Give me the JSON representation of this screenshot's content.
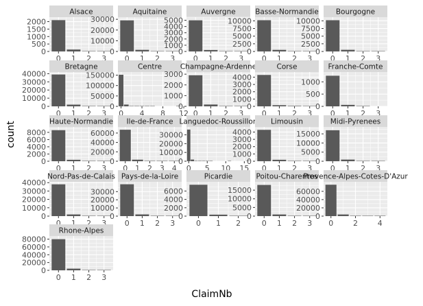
{
  "chart_data": {
    "type": "bar",
    "facet": "wrap",
    "xlabel": "ClaimNb",
    "ylabel": "count",
    "grid": true,
    "colors": {
      "bar": "#595959",
      "panel": "#ebebeb",
      "strip": "#d9d9d9",
      "grid": "#ffffff"
    },
    "panels": [
      {
        "label": "Alsace",
        "x": [
          0,
          1,
          2,
          3
        ],
        "values": [
          2100,
          130,
          8,
          1
        ],
        "ylim": [
          0,
          2300
        ],
        "yticks": [
          "0",
          "500",
          "1000",
          "1500",
          "2000"
        ],
        "xticks": [
          "0",
          "1",
          "2",
          "3"
        ],
        "xlim": [
          -0.6,
          3.6
        ]
      },
      {
        "label": "Aquitaine",
        "x": [
          0,
          1,
          2,
          3
        ],
        "values": [
          29000,
          1500,
          60,
          5
        ],
        "ylim": [
          0,
          32000
        ],
        "yticks": [
          "0",
          "10000",
          "20000",
          "30000"
        ],
        "xticks": [
          "0",
          "1",
          "2",
          "3"
        ],
        "xlim": [
          -0.6,
          3.6
        ]
      },
      {
        "label": "Auvergne",
        "x": [
          0,
          1,
          2,
          3
        ],
        "values": [
          5000,
          230,
          10,
          1
        ],
        "ylim": [
          0,
          5500
        ],
        "yticks": [
          "0",
          "1000",
          "2000",
          "3000",
          "4000",
          "5000"
        ],
        "xticks": [
          "0",
          "1",
          "2",
          "3"
        ],
        "xlim": [
          -0.6,
          3.6
        ]
      },
      {
        "label": "Basse-Normandie",
        "x": [
          0,
          1,
          2,
          3
        ],
        "values": [
          10200,
          520,
          20,
          2
        ],
        "ylim": [
          0,
          11200
        ],
        "yticks": [
          "0",
          "2500",
          "5000",
          "7500",
          "10000"
        ],
        "xticks": [
          "0",
          "1",
          "2",
          "3"
        ],
        "xlim": [
          -0.6,
          3.6
        ]
      },
      {
        "label": "Bourgogne",
        "x": [
          0,
          1,
          2,
          3
        ],
        "values": [
          10200,
          540,
          20,
          2
        ],
        "ylim": [
          0,
          11200
        ],
        "yticks": [
          "0",
          "2500",
          "5000",
          "7500",
          "10000"
        ],
        "xticks": [
          "0",
          "1",
          "2",
          "3"
        ],
        "xlim": [
          -0.6,
          3.6
        ]
      },
      {
        "label": "Bretagne",
        "x": [
          0,
          1,
          2,
          3
        ],
        "values": [
          39000,
          2100,
          80,
          5
        ],
        "ylim": [
          0,
          42000
        ],
        "yticks": [
          "0",
          "10000",
          "20000",
          "30000",
          "40000"
        ],
        "xticks": [
          "0",
          "1",
          "2",
          "3"
        ],
        "xlim": [
          -0.6,
          3.6
        ]
      },
      {
        "label": "Centre",
        "x": [
          0,
          1,
          2,
          3,
          4,
          5,
          6,
          7,
          8,
          9,
          10,
          11
        ],
        "values": [
          152000,
          8500,
          300,
          20,
          3,
          1,
          1,
          0,
          0,
          0,
          0,
          1
        ],
        "ylim": [
          0,
          165000
        ],
        "yticks": [
          "0",
          "50000",
          "100000",
          "150000"
        ],
        "xticks": [
          "0",
          "4",
          "8",
          "12"
        ],
        "xlim": [
          -0.6,
          11.6
        ]
      },
      {
        "label": "Champagne-Ardenne",
        "x": [
          0,
          1,
          2,
          3
        ],
        "values": [
          2900,
          170,
          8,
          1
        ],
        "ylim": [
          0,
          3200
        ],
        "yticks": [
          "0",
          "1000",
          "2000",
          "3000"
        ],
        "xticks": [
          "0",
          "1",
          "2",
          "3"
        ],
        "xlim": [
          -0.6,
          3.6
        ]
      },
      {
        "label": "Corse",
        "x": [
          0,
          1,
          2,
          3
        ],
        "values": [
          4300,
          160,
          60,
          10
        ],
        "ylim": [
          0,
          4700
        ],
        "yticks": [
          "0",
          "1000",
          "2000",
          "3000",
          "4000"
        ],
        "xticks": [
          "0",
          "1",
          "2",
          "3"
        ],
        "xlim": [
          -0.6,
          3.6
        ]
      },
      {
        "label": "Franche-Comte",
        "x": [
          0,
          1,
          2,
          3
        ],
        "values": [
          1250,
          60,
          3,
          0
        ],
        "ylim": [
          0,
          1400
        ],
        "yticks": [
          "0",
          "500",
          "1000"
        ],
        "xticks": [
          "0",
          "1",
          "2",
          "3"
        ],
        "xlim": [
          -0.6,
          3.6
        ]
      },
      {
        "label": "Haute-Normandie",
        "x": [
          0,
          1,
          2,
          3
        ],
        "values": [
          8600,
          400,
          15,
          1
        ],
        "ylim": [
          0,
          9500
        ],
        "yticks": [
          "0",
          "2000",
          "4000",
          "6000",
          "8000"
        ],
        "xticks": [
          "0",
          "1",
          "2",
          "3"
        ],
        "xlim": [
          -0.6,
          3.6
        ]
      },
      {
        "label": "Ile-de-France",
        "x": [
          0,
          1,
          2,
          3,
          4
        ],
        "values": [
          67000,
          3300,
          130,
          10,
          2
        ],
        "ylim": [
          0,
          73000
        ],
        "yticks": [
          "0",
          "20000",
          "40000",
          "60000"
        ],
        "xticks": [
          "0",
          "1",
          "2",
          "3",
          "4"
        ],
        "xlim": [
          -0.6,
          4.6
        ]
      },
      {
        "label": "Languedoc-Roussillon",
        "x": [
          0,
          1,
          2,
          3,
          4,
          5,
          6,
          7,
          8,
          9,
          10,
          11,
          12,
          13,
          14,
          15,
          16
        ],
        "values": [
          36000,
          1900,
          80,
          10,
          3,
          1,
          1,
          0,
          0,
          0,
          0,
          1,
          0,
          0,
          0,
          0,
          1
        ],
        "ylim": [
          0,
          39000
        ],
        "yticks": [
          "0",
          "10000",
          "20000",
          "30000"
        ],
        "xticks": [
          "0",
          "5",
          "10",
          "15"
        ],
        "xlim": [
          -0.6,
          16.6
        ]
      },
      {
        "label": "Limousin",
        "x": [
          0,
          1,
          2,
          3
        ],
        "values": [
          4300,
          200,
          10,
          1
        ],
        "ylim": [
          0,
          4700
        ],
        "yticks": [
          "0",
          "1000",
          "2000",
          "3000",
          "4000"
        ],
        "xticks": [
          "0",
          "1",
          "2",
          "3"
        ],
        "xlim": [
          -0.6,
          3.6
        ]
      },
      {
        "label": "Midi-Pyrenees",
        "x": [
          0,
          1,
          2,
          3
        ],
        "values": [
          17000,
          900,
          30,
          2
        ],
        "ylim": [
          0,
          18800
        ],
        "yticks": [
          "0",
          "5000",
          "10000",
          "15000"
        ],
        "xticks": [
          "0",
          "1",
          "2",
          "3"
        ],
        "xlim": [
          -0.6,
          3.6
        ]
      },
      {
        "label": "Nord-Pas-de-Calais",
        "x": [
          0,
          1,
          2,
          3
        ],
        "values": [
          38000,
          2000,
          70,
          5
        ],
        "ylim": [
          0,
          41000
        ],
        "yticks": [
          "0",
          "10000",
          "20000",
          "30000",
          "40000"
        ],
        "xticks": [
          "0",
          "1",
          "2",
          "3"
        ],
        "xlim": [
          -0.6,
          3.6
        ]
      },
      {
        "label": "Pays-de-la-Loire",
        "x": [
          0,
          1,
          2,
          3
        ],
        "values": [
          39000,
          2100,
          80,
          5
        ],
        "ylim": [
          0,
          42000
        ],
        "yticks": [
          "0",
          "10000",
          "20000",
          "30000"
        ],
        "xticks": [
          "0",
          "1",
          "2",
          "3"
        ],
        "xlim": [
          -0.6,
          3.6
        ]
      },
      {
        "label": "Picardie",
        "x": [
          0,
          1,
          2
        ],
        "values": [
          7500,
          350,
          10
        ],
        "ylim": [
          0,
          8200
        ],
        "yticks": [
          "0",
          "2000",
          "4000",
          "6000"
        ],
        "xticks": [
          "0",
          "1",
          "2"
        ],
        "xlim": [
          -0.6,
          2.6
        ]
      },
      {
        "label": "Poitou-Charentes",
        "x": [
          0,
          1,
          2,
          3
        ],
        "values": [
          18000,
          950,
          40,
          3
        ],
        "ylim": [
          0,
          19800
        ],
        "yticks": [
          "0",
          "5000",
          "10000",
          "15000"
        ],
        "xticks": [
          "0",
          "1",
          "2",
          "3"
        ],
        "xlim": [
          -0.6,
          3.6
        ]
      },
      {
        "label": "Provence-Alpes-Cotes-D'Azur",
        "x": [
          0,
          1,
          2,
          3,
          4
        ],
        "values": [
          76000,
          4000,
          150,
          12,
          2
        ],
        "ylim": [
          0,
          83000
        ],
        "yticks": [
          "0",
          "20000",
          "40000",
          "60000"
        ],
        "xticks": [
          "0",
          "2",
          "4"
        ],
        "xlim": [
          -0.6,
          4.6
        ]
      },
      {
        "label": "Rhone-Alpes",
        "x": [
          0,
          1,
          2,
          3
        ],
        "values": [
          80000,
          4300,
          160,
          12
        ],
        "ylim": [
          0,
          88000
        ],
        "yticks": [
          "0",
          "20000",
          "40000",
          "60000",
          "80000"
        ],
        "xticks": [
          "0",
          "1",
          "2",
          "3"
        ],
        "xlim": [
          -0.6,
          3.6
        ]
      }
    ]
  }
}
